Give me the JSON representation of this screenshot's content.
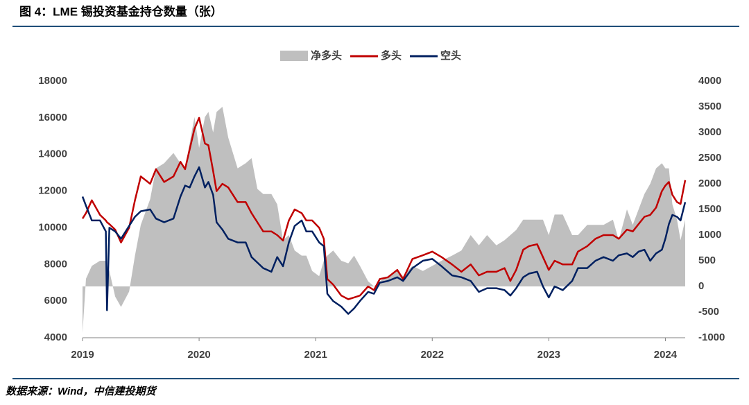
{
  "chart_data": {
    "type": "line",
    "title": "图 4：LME 锡投资基金持仓数量（张）",
    "source": "数据来源：Wind，中信建投期货",
    "x": [
      2019.0,
      2019.03,
      2019.08,
      2019.15,
      2019.2,
      2019.21,
      2019.23,
      2019.28,
      2019.33,
      2019.4,
      2019.45,
      2019.5,
      2019.58,
      2019.63,
      2019.7,
      2019.78,
      2019.84,
      2019.88,
      2019.92,
      2019.96,
      2020.0,
      2020.05,
      2020.08,
      2020.12,
      2020.15,
      2020.2,
      2020.25,
      2020.33,
      2020.4,
      2020.45,
      2020.5,
      2020.55,
      2020.62,
      2020.67,
      2020.72,
      2020.77,
      2020.82,
      2020.88,
      2020.92,
      2020.97,
      2021.03,
      2021.07,
      2021.1,
      2021.15,
      2021.22,
      2021.28,
      2021.33,
      2021.38,
      2021.45,
      2021.5,
      2021.55,
      2021.62,
      2021.7,
      2021.75,
      2021.83,
      2021.92,
      2022.0,
      2022.08,
      2022.17,
      2022.25,
      2022.33,
      2022.4,
      2022.47,
      2022.55,
      2022.62,
      2022.67,
      2022.72,
      2022.78,
      2022.83,
      2022.9,
      2022.95,
      2023.0,
      2023.05,
      2023.12,
      2023.2,
      2023.25,
      2023.33,
      2023.4,
      2023.47,
      2023.55,
      2023.6,
      2023.67,
      2023.72,
      2023.77,
      2023.82,
      2023.87,
      2023.92,
      2023.97,
      2024.0,
      2024.03,
      2024.06,
      2024.1,
      2024.13,
      2024.17
    ],
    "series": [
      {
        "name": "净多头",
        "color": "#bfbfbf",
        "style": "area",
        "axis": "y2",
        "values": [
          -900,
          150,
          400,
          500,
          500,
          400,
          300,
          -200,
          -400,
          -100,
          600,
          1200,
          1700,
          2300,
          2400,
          2600,
          2400,
          2300,
          2800,
          3300,
          2700,
          3300,
          3400,
          3000,
          3400,
          3500,
          2900,
          2300,
          2400,
          2500,
          1900,
          1800,
          1800,
          1600,
          900,
          1000,
          700,
          600,
          600,
          300,
          200,
          500,
          600,
          700,
          500,
          450,
          600,
          400,
          100,
          0,
          100,
          200,
          300,
          200,
          400,
          300,
          400,
          500,
          600,
          700,
          1000,
          800,
          1000,
          800,
          900,
          1000,
          1100,
          1300,
          1300,
          1300,
          1300,
          1000,
          1400,
          1400,
          1000,
          1000,
          1200,
          1200,
          1200,
          1300,
          900,
          1500,
          1200,
          1500,
          1800,
          2000,
          2300,
          2400,
          2300,
          2300,
          1600,
          1300,
          900,
          1300
        ]
      },
      {
        "name": "多头",
        "color": "#c00000",
        "style": "line",
        "values": [
          10500,
          10800,
          11500,
          10700,
          10400,
          10300,
          10200,
          9900,
          9200,
          10000,
          11500,
          12800,
          12400,
          13200,
          12500,
          12800,
          13600,
          13200,
          14300,
          15400,
          16000,
          14600,
          14500,
          13100,
          12000,
          12400,
          12200,
          11400,
          11400,
          10800,
          10300,
          9800,
          9800,
          9600,
          9300,
          10400,
          11000,
          10800,
          10400,
          10400,
          10000,
          9400,
          7200,
          6900,
          6300,
          6100,
          6200,
          6300,
          6800,
          6600,
          7200,
          7300,
          7700,
          7200,
          8300,
          8500,
          8700,
          8400,
          8000,
          7600,
          8000,
          7400,
          7600,
          7600,
          7800,
          7100,
          7700,
          8800,
          9000,
          9100,
          8400,
          7700,
          8200,
          8000,
          8000,
          8700,
          9000,
          9400,
          9600,
          9600,
          9400,
          9900,
          9800,
          10200,
          10600,
          10700,
          11100,
          12000,
          12300,
          12500,
          11800,
          11400,
          11300,
          12600
        ]
      },
      {
        "name": "空头",
        "color": "#002060",
        "style": "line",
        "values": [
          11700,
          11200,
          10400,
          10400,
          9800,
          5500,
          10000,
          9800,
          9400,
          10100,
          10600,
          10900,
          11000,
          10500,
          10300,
          10500,
          11700,
          12300,
          12200,
          12800,
          13300,
          12200,
          12500,
          11800,
          10300,
          9900,
          9400,
          9200,
          9200,
          8400,
          8100,
          7800,
          7600,
          8400,
          7900,
          9200,
          10100,
          10400,
          9800,
          9800,
          9200,
          9000,
          6400,
          6000,
          5700,
          5300,
          5600,
          6000,
          6500,
          6400,
          7000,
          7100,
          7300,
          7100,
          7800,
          8200,
          8300,
          7900,
          7400,
          7300,
          7100,
          6500,
          6700,
          6700,
          6600,
          6300,
          6700,
          7300,
          7500,
          7600,
          6800,
          6200,
          6800,
          6600,
          7100,
          7800,
          7800,
          8200,
          8400,
          8200,
          8500,
          8600,
          8400,
          8700,
          8800,
          8200,
          8600,
          8800,
          9400,
          10200,
          10700,
          10600,
          10400,
          11400
        ]
      }
    ],
    "xlim": [
      2019,
      2024.17
    ],
    "xticks": [
      2019,
      2020,
      2021,
      2022,
      2023,
      2024
    ],
    "ylim": [
      4000,
      18000
    ],
    "yticks": [
      4000,
      6000,
      8000,
      10000,
      12000,
      14000,
      16000,
      18000
    ],
    "y2lim": [
      -1000,
      4000
    ],
    "y2ticks": [
      -1000,
      -500,
      0,
      500,
      1000,
      1500,
      2000,
      2500,
      3000,
      3500,
      4000
    ],
    "grid": false,
    "legend": "top"
  }
}
